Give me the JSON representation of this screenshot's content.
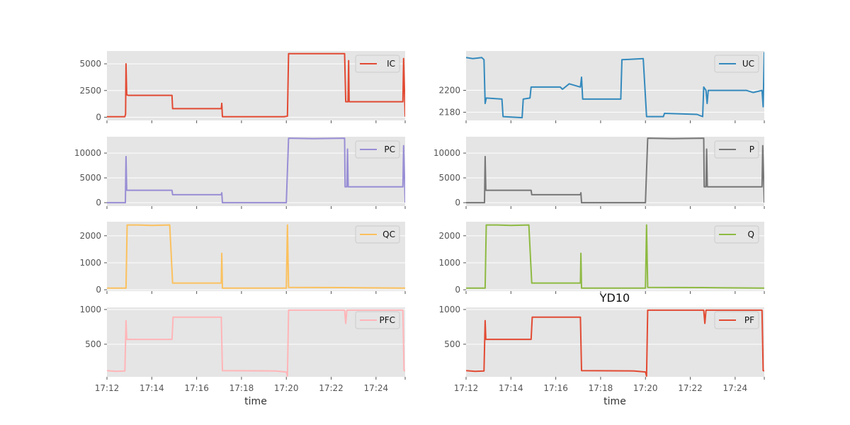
{
  "chart_data": {
    "type": "line",
    "title": "YD10",
    "style": {
      "background": "#e5e5e5",
      "grid": "#ffffff",
      "legend_frame": "#cccccc"
    },
    "x_ticks": [
      "17:12",
      "17:14",
      "17:16",
      "17:18",
      "17:20",
      "17:22",
      "17:24"
    ],
    "x_tick_minutes": [
      12,
      14,
      16,
      18,
      20,
      22,
      24
    ],
    "x_range_minutes": [
      12,
      25.3
    ],
    "xlabel": "time",
    "x_time_prefix": "17:",
    "panels": [
      {
        "column": "left",
        "row": 0,
        "legend": "IC",
        "color": "#e24a33",
        "ylim": [
          -300,
          6200
        ],
        "yticks": [
          0,
          2500,
          5000
        ],
        "ytick_labels": [
          "0",
          "2500",
          "5000"
        ],
        "points": [
          [
            12.0,
            50
          ],
          [
            12.8,
            50
          ],
          [
            12.83,
            300
          ],
          [
            12.85,
            5000
          ],
          [
            12.88,
            2100
          ],
          [
            12.95,
            2050
          ],
          [
            14.9,
            2050
          ],
          [
            14.93,
            800
          ],
          [
            17.1,
            800
          ],
          [
            17.12,
            1300
          ],
          [
            17.15,
            50
          ],
          [
            19.9,
            50
          ],
          [
            20.05,
            100
          ],
          [
            20.1,
            5950
          ],
          [
            21.3,
            5950
          ],
          [
            22.6,
            5950
          ],
          [
            22.65,
            1450
          ],
          [
            22.75,
            1450
          ],
          [
            22.78,
            5300
          ],
          [
            22.8,
            1450
          ],
          [
            25.2,
            1450
          ],
          [
            25.23,
            5500
          ],
          [
            25.3,
            50
          ]
        ]
      },
      {
        "column": "left",
        "row": 1,
        "legend": "PC",
        "color": "#988ed5",
        "ylim": [
          -700,
          13300
        ],
        "yticks": [
          0,
          5000,
          10000
        ],
        "ytick_labels": [
          "0",
          "5000",
          "10000"
        ],
        "points": [
          [
            12.0,
            0
          ],
          [
            12.82,
            0
          ],
          [
            12.85,
            9300
          ],
          [
            12.88,
            2500
          ],
          [
            14.9,
            2500
          ],
          [
            14.93,
            1600
          ],
          [
            17.1,
            1600
          ],
          [
            17.12,
            2000
          ],
          [
            17.15,
            0
          ],
          [
            20.0,
            0
          ],
          [
            20.1,
            13000
          ],
          [
            21.2,
            12900
          ],
          [
            22.6,
            13000
          ],
          [
            22.62,
            3200
          ],
          [
            22.7,
            3200
          ],
          [
            22.73,
            10800
          ],
          [
            22.76,
            3200
          ],
          [
            25.2,
            3200
          ],
          [
            25.23,
            11500
          ],
          [
            25.3,
            0
          ]
        ]
      },
      {
        "column": "left",
        "row": 2,
        "legend": "QC",
        "color": "#fbc15e",
        "ylim": [
          -50,
          2520
        ],
        "yticks": [
          0,
          1000,
          2000
        ],
        "ytick_labels": [
          "0",
          "1000",
          "2000"
        ],
        "points": [
          [
            12.0,
            60
          ],
          [
            12.85,
            60
          ],
          [
            12.9,
            2400
          ],
          [
            13.4,
            2400
          ],
          [
            14.0,
            2380
          ],
          [
            14.8,
            2400
          ],
          [
            14.93,
            250
          ],
          [
            17.1,
            250
          ],
          [
            17.12,
            1350
          ],
          [
            17.15,
            60
          ],
          [
            20.0,
            60
          ],
          [
            20.05,
            2400
          ],
          [
            20.1,
            90
          ],
          [
            22.6,
            80
          ],
          [
            25.3,
            60
          ]
        ]
      },
      {
        "column": "left",
        "row": 3,
        "legend": "PFC",
        "color": "#ffb5b8",
        "ylim": [
          30,
          1030
        ],
        "yticks": [
          500,
          1000
        ],
        "ytick_labels": [
          "500",
          "1000"
        ],
        "points": [
          [
            12.0,
            120
          ],
          [
            12.4,
            110
          ],
          [
            12.8,
            115
          ],
          [
            12.85,
            840
          ],
          [
            12.88,
            570
          ],
          [
            14.9,
            570
          ],
          [
            14.95,
            890
          ],
          [
            17.1,
            890
          ],
          [
            17.15,
            120
          ],
          [
            19.5,
            115
          ],
          [
            20.0,
            100
          ],
          [
            20.05,
            40
          ],
          [
            20.1,
            990
          ],
          [
            22.6,
            990
          ],
          [
            22.65,
            800
          ],
          [
            22.7,
            990
          ],
          [
            25.2,
            990
          ],
          [
            25.25,
            120
          ],
          [
            25.3,
            115
          ]
        ]
      },
      {
        "column": "right",
        "row": 0,
        "legend": "UC",
        "color": "#348abd",
        "ylim": [
          2172.5,
          2236
        ],
        "yticks": [
          2180,
          2200
        ],
        "ytick_labels": [
          "2180",
          "2200"
        ],
        "points": [
          [
            12.0,
            2230
          ],
          [
            12.3,
            2229
          ],
          [
            12.7,
            2230
          ],
          [
            12.8,
            2228
          ],
          [
            12.85,
            2188
          ],
          [
            12.9,
            2193
          ],
          [
            13.6,
            2192
          ],
          [
            13.65,
            2176
          ],
          [
            14.5,
            2175
          ],
          [
            14.55,
            2192
          ],
          [
            14.85,
            2193
          ],
          [
            14.9,
            2203
          ],
          [
            16.2,
            2203
          ],
          [
            16.3,
            2201
          ],
          [
            16.6,
            2206
          ],
          [
            17.1,
            2203
          ],
          [
            17.15,
            2212
          ],
          [
            17.2,
            2192
          ],
          [
            18.9,
            2192
          ],
          [
            18.95,
            2228
          ],
          [
            19.9,
            2229
          ],
          [
            20.05,
            2176
          ],
          [
            20.8,
            2176
          ],
          [
            20.85,
            2179
          ],
          [
            22.3,
            2178
          ],
          [
            22.55,
            2176
          ],
          [
            22.6,
            2203
          ],
          [
            22.7,
            2200
          ],
          [
            22.75,
            2188
          ],
          [
            22.8,
            2200
          ],
          [
            24.5,
            2200
          ],
          [
            24.8,
            2198
          ],
          [
            25.2,
            2200
          ],
          [
            25.25,
            2185
          ],
          [
            25.3,
            2235
          ]
        ]
      },
      {
        "column": "right",
        "row": 1,
        "legend": "P",
        "color": "#777777",
        "ylim": [
          -700,
          13300
        ],
        "yticks": [
          0,
          5000,
          10000
        ],
        "ytick_labels": [
          "0",
          "5000",
          "10000"
        ],
        "points": [
          [
            12.0,
            0
          ],
          [
            12.82,
            0
          ],
          [
            12.85,
            9300
          ],
          [
            12.88,
            2500
          ],
          [
            14.9,
            2500
          ],
          [
            14.93,
            1600
          ],
          [
            17.1,
            1600
          ],
          [
            17.12,
            2000
          ],
          [
            17.15,
            0
          ],
          [
            20.0,
            0
          ],
          [
            20.1,
            13000
          ],
          [
            21.2,
            12900
          ],
          [
            22.6,
            13000
          ],
          [
            22.62,
            3200
          ],
          [
            22.7,
            3200
          ],
          [
            22.73,
            10800
          ],
          [
            22.76,
            3200
          ],
          [
            25.2,
            3200
          ],
          [
            25.23,
            11500
          ],
          [
            25.3,
            0
          ]
        ]
      },
      {
        "column": "right",
        "row": 2,
        "legend": "Q",
        "color": "#8eba42",
        "ylim": [
          -50,
          2520
        ],
        "yticks": [
          0,
          1000,
          2000
        ],
        "ytick_labels": [
          "0",
          "1000",
          "2000"
        ],
        "points": [
          [
            12.0,
            60
          ],
          [
            12.85,
            60
          ],
          [
            12.9,
            2400
          ],
          [
            13.4,
            2400
          ],
          [
            14.0,
            2380
          ],
          [
            14.8,
            2400
          ],
          [
            14.93,
            250
          ],
          [
            17.1,
            250
          ],
          [
            17.12,
            1350
          ],
          [
            17.15,
            60
          ],
          [
            20.0,
            60
          ],
          [
            20.05,
            2400
          ],
          [
            20.1,
            90
          ],
          [
            22.6,
            80
          ],
          [
            25.3,
            60
          ]
        ]
      },
      {
        "column": "right",
        "row": 3,
        "legend": "PF",
        "color": "#e24a33",
        "ylim": [
          30,
          1030
        ],
        "yticks": [
          500,
          1000
        ],
        "ytick_labels": [
          "500",
          "1000"
        ],
        "points": [
          [
            12.0,
            120
          ],
          [
            12.4,
            110
          ],
          [
            12.8,
            115
          ],
          [
            12.85,
            840
          ],
          [
            12.88,
            570
          ],
          [
            14.9,
            570
          ],
          [
            14.95,
            890
          ],
          [
            17.1,
            890
          ],
          [
            17.15,
            120
          ],
          [
            19.5,
            115
          ],
          [
            20.0,
            100
          ],
          [
            20.05,
            40
          ],
          [
            20.1,
            990
          ],
          [
            22.6,
            990
          ],
          [
            22.65,
            800
          ],
          [
            22.7,
            990
          ],
          [
            25.2,
            990
          ],
          [
            25.25,
            120
          ],
          [
            25.3,
            115
          ]
        ]
      }
    ]
  }
}
